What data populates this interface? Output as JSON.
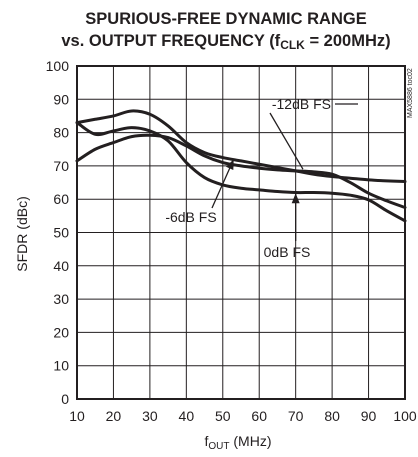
{
  "chart_data": {
    "type": "line",
    "title_line1": "SPURIOUS-FREE DYNAMIC RANGE",
    "title_line2_prefix": "vs. OUTPUT FREQUENCY (f",
    "title_line2_sub": "CLK",
    "title_line2_suffix": " = 200MHz)",
    "xlabel_main": "f",
    "xlabel_sub": "OUT",
    "xlabel_unit": " (MHz)",
    "ylabel": "SFDR (dBc)",
    "toc_id": "MAX5886 toc02",
    "xlim": [
      10,
      100
    ],
    "ylim": [
      0,
      100
    ],
    "x_ticks": [
      "10",
      "20",
      "30",
      "40",
      "50",
      "60",
      "70",
      "80",
      "90",
      "100"
    ],
    "y_ticks": [
      "0",
      "10",
      "20",
      "30",
      "40",
      "50",
      "60",
      "70",
      "80",
      "90",
      "100"
    ],
    "grid": true,
    "series": [
      {
        "name": "-12dB FS",
        "points": [
          [
            10,
            83
          ],
          [
            15,
            84
          ],
          [
            20,
            85
          ],
          [
            25,
            86.5
          ],
          [
            30,
            85.5
          ],
          [
            35,
            82
          ],
          [
            40,
            77
          ],
          [
            45,
            74
          ],
          [
            50,
            72.5
          ],
          [
            55,
            71.5
          ],
          [
            60,
            70.5
          ],
          [
            65,
            69.5
          ],
          [
            70,
            68.5
          ],
          [
            75,
            67.5
          ],
          [
            80,
            66.8
          ],
          [
            85,
            66.3
          ],
          [
            90,
            65.8
          ],
          [
            95,
            65.5
          ],
          [
            100,
            65.3
          ]
        ]
      },
      {
        "name": "-6dB FS",
        "points": [
          [
            10,
            71.5
          ],
          [
            15,
            75
          ],
          [
            20,
            77
          ],
          [
            25,
            78.8
          ],
          [
            30,
            79.2
          ],
          [
            35,
            78.5
          ],
          [
            40,
            76
          ],
          [
            45,
            73
          ],
          [
            50,
            71
          ],
          [
            55,
            70
          ],
          [
            60,
            69.3
          ],
          [
            65,
            68.8
          ],
          [
            70,
            68.5
          ],
          [
            75,
            68.2
          ],
          [
            80,
            67.5
          ],
          [
            85,
            65
          ],
          [
            90,
            61.8
          ],
          [
            95,
            59.5
          ],
          [
            100,
            57.5
          ]
        ]
      },
      {
        "name": "0dB FS",
        "points": [
          [
            10,
            83
          ],
          [
            15,
            79.5
          ],
          [
            20,
            80.5
          ],
          [
            25,
            81.5
          ],
          [
            30,
            80.5
          ],
          [
            35,
            77.5
          ],
          [
            40,
            71
          ],
          [
            45,
            66.5
          ],
          [
            50,
            64.3
          ],
          [
            55,
            63.3
          ],
          [
            60,
            62.8
          ],
          [
            65,
            62.3
          ],
          [
            70,
            62
          ],
          [
            75,
            62
          ],
          [
            80,
            61.8
          ],
          [
            85,
            61.2
          ],
          [
            90,
            59.8
          ],
          [
            95,
            56.5
          ],
          [
            100,
            53.5
          ]
        ]
      }
    ],
    "annotations": [
      {
        "text": "-12dB FS",
        "target": [
          72,
          69
        ]
      },
      {
        "text": "-6dB FS",
        "target": [
          53,
          72
        ]
      },
      {
        "text": "0dB FS",
        "target": [
          70,
          61.8
        ]
      }
    ]
  }
}
